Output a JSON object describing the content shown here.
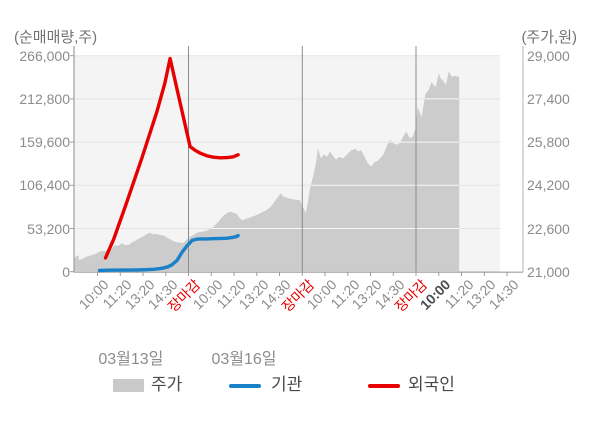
{
  "chart_data": {
    "type": "area+line combo (intraday stock price vs cumulative net buying)",
    "left_axis": {
      "title": "(순매매량,주)",
      "tick_values": [
        0,
        53200,
        106400,
        159600,
        212800,
        266000
      ],
      "range": [
        0,
        266000
      ]
    },
    "right_axis": {
      "title": "(주가,원)",
      "tick_values": [
        21000,
        22600,
        24200,
        25800,
        27400,
        29000
      ],
      "range": [
        21000,
        29000
      ]
    },
    "x_axis": {
      "tick_labels": [
        "10:00",
        "11:20",
        "13:20",
        "14:30",
        "장마감",
        "10:00",
        "11:20",
        "13:20",
        "14:30",
        "장마감",
        "10:00",
        "11:20",
        "13:20",
        "14:30",
        "장마감",
        "10:00",
        "11:20",
        "13:20",
        "14:30"
      ],
      "market_close_indices": [
        4,
        9,
        14
      ],
      "current_time_index": 15,
      "dates": [
        {
          "label": "03월13일",
          "center_u": 1.47
        },
        {
          "label": "03월16일",
          "center_u": 6.44
        }
      ]
    },
    "series": [
      {
        "name": "주가",
        "type": "area",
        "axis": "right",
        "color": "#cccccc",
        "points": [
          [
            -1.03,
            21480
          ],
          [
            -0.95,
            21560
          ],
          [
            -0.85,
            21620
          ],
          [
            -0.8,
            21430
          ],
          [
            -0.6,
            21500
          ],
          [
            -0.49,
            21550
          ],
          [
            -0.3,
            21600
          ],
          [
            -0.13,
            21640
          ],
          [
            0.18,
            21780
          ],
          [
            0.35,
            21760
          ],
          [
            0.49,
            21850
          ],
          [
            0.62,
            21830
          ],
          [
            0.75,
            21980
          ],
          [
            0.9,
            21950
          ],
          [
            1.06,
            22050
          ],
          [
            1.22,
            21990
          ],
          [
            1.37,
            22000
          ],
          [
            1.52,
            22090
          ],
          [
            1.68,
            22150
          ],
          [
            1.83,
            22230
          ],
          [
            1.99,
            22300
          ],
          [
            2.15,
            22380
          ],
          [
            2.3,
            22450
          ],
          [
            2.45,
            22380
          ],
          [
            2.61,
            22400
          ],
          [
            2.75,
            22360
          ],
          [
            2.88,
            22350
          ],
          [
            3.03,
            22280
          ],
          [
            3.19,
            22200
          ],
          [
            3.32,
            22140
          ],
          [
            3.45,
            22100
          ],
          [
            3.6,
            22080
          ],
          [
            3.76,
            22060
          ],
          [
            3.92,
            22180
          ],
          [
            4.07,
            22300
          ],
          [
            4.22,
            22360
          ],
          [
            4.38,
            22450
          ],
          [
            4.54,
            22470
          ],
          [
            4.69,
            22500
          ],
          [
            4.85,
            22540
          ],
          [
            5.0,
            22600
          ],
          [
            5.16,
            22720
          ],
          [
            5.31,
            22850
          ],
          [
            5.45,
            23000
          ],
          [
            5.58,
            23100
          ],
          [
            5.71,
            23180
          ],
          [
            5.84,
            23220
          ],
          [
            5.98,
            23180
          ],
          [
            6.11,
            23150
          ],
          [
            6.24,
            23000
          ],
          [
            6.37,
            22900
          ],
          [
            6.53,
            22960
          ],
          [
            6.68,
            23000
          ],
          [
            6.84,
            23050
          ],
          [
            6.99,
            23100
          ],
          [
            7.15,
            23160
          ],
          [
            7.3,
            23230
          ],
          [
            7.46,
            23300
          ],
          [
            7.61,
            23400
          ],
          [
            7.75,
            23560
          ],
          [
            7.88,
            23700
          ],
          [
            8.05,
            23900
          ],
          [
            8.16,
            23790
          ],
          [
            8.27,
            23750
          ],
          [
            8.43,
            23710
          ],
          [
            8.58,
            23680
          ],
          [
            8.74,
            23660
          ],
          [
            8.89,
            23650
          ],
          [
            9.03,
            23400
          ],
          [
            9.16,
            23170
          ],
          [
            9.25,
            23600
          ],
          [
            9.34,
            24100
          ],
          [
            9.47,
            24500
          ],
          [
            9.6,
            25000
          ],
          [
            9.69,
            25570
          ],
          [
            9.82,
            25200
          ],
          [
            9.96,
            25350
          ],
          [
            10.09,
            25250
          ],
          [
            10.22,
            25450
          ],
          [
            10.35,
            25300
          ],
          [
            10.49,
            25150
          ],
          [
            10.62,
            25250
          ],
          [
            10.8,
            25200
          ],
          [
            10.97,
            25350
          ],
          [
            11.15,
            25500
          ],
          [
            11.33,
            25550
          ],
          [
            11.46,
            25450
          ],
          [
            11.59,
            25500
          ],
          [
            11.77,
            25200
          ],
          [
            11.9,
            25000
          ],
          [
            12.04,
            24900
          ],
          [
            12.17,
            25050
          ],
          [
            12.3,
            25100
          ],
          [
            12.43,
            25200
          ],
          [
            12.57,
            25350
          ],
          [
            12.74,
            25700
          ],
          [
            12.88,
            25880
          ],
          [
            13.01,
            25750
          ],
          [
            13.19,
            25700
          ],
          [
            13.32,
            25800
          ],
          [
            13.45,
            26030
          ],
          [
            13.58,
            26190
          ],
          [
            13.72,
            25950
          ],
          [
            13.85,
            25990
          ],
          [
            13.98,
            26300
          ],
          [
            14.07,
            27100
          ],
          [
            14.16,
            26920
          ],
          [
            14.25,
            26740
          ],
          [
            14.34,
            27200
          ],
          [
            14.42,
            27600
          ],
          [
            14.56,
            27730
          ],
          [
            14.69,
            28040
          ],
          [
            14.78,
            27900
          ],
          [
            14.87,
            27850
          ],
          [
            15.0,
            28350
          ],
          [
            15.09,
            28150
          ],
          [
            15.18,
            28100
          ],
          [
            15.31,
            27920
          ],
          [
            15.44,
            28410
          ],
          [
            15.58,
            28220
          ],
          [
            15.71,
            28250
          ],
          [
            15.84,
            28230
          ],
          [
            15.9,
            28200
          ]
        ]
      },
      {
        "name": "기관",
        "type": "line",
        "axis": "left",
        "color": "#1a80c8",
        "points": [
          [
            0.09,
            1500
          ],
          [
            0.4,
            1800
          ],
          [
            0.84,
            2000
          ],
          [
            1.28,
            2000
          ],
          [
            1.73,
            2200
          ],
          [
            2.08,
            2500
          ],
          [
            2.48,
            3000
          ],
          [
            2.83,
            4200
          ],
          [
            3.1,
            6000
          ],
          [
            3.27,
            8500
          ],
          [
            3.5,
            14000
          ],
          [
            3.72,
            24000
          ],
          [
            3.94,
            32000
          ],
          [
            4.16,
            38500
          ],
          [
            4.38,
            40200
          ],
          [
            4.6,
            40400
          ],
          [
            4.82,
            40400
          ],
          [
            5.04,
            40600
          ],
          [
            5.27,
            40800
          ],
          [
            5.49,
            41000
          ],
          [
            5.71,
            41300
          ],
          [
            5.93,
            42200
          ],
          [
            6.11,
            43200
          ],
          [
            6.18,
            44500
          ]
        ]
      },
      {
        "name": "외국인",
        "type": "line",
        "axis": "left",
        "color": "#e60000",
        "points": [
          [
            0.35,
            17000
          ],
          [
            0.71,
            40000
          ],
          [
            1.28,
            85000
          ],
          [
            1.95,
            140000
          ],
          [
            2.61,
            197000
          ],
          [
            2.96,
            232000
          ],
          [
            3.19,
            262500
          ],
          [
            3.63,
            208000
          ],
          [
            4.07,
            154000
          ],
          [
            4.29,
            149500
          ],
          [
            4.51,
            146000
          ],
          [
            4.78,
            143000
          ],
          [
            5.09,
            141000
          ],
          [
            5.4,
            140300
          ],
          [
            5.71,
            140500
          ],
          [
            5.97,
            141500
          ],
          [
            6.18,
            144000
          ]
        ]
      }
    ],
    "legend": {
      "items": [
        {
          "label": "주가",
          "swatch": "area"
        },
        {
          "label": "기관",
          "swatch": "line"
        },
        {
          "label": "외국인",
          "swatch": "line"
        }
      ]
    },
    "colors": {
      "plot_bg": "#f4f4f4",
      "gridline": "#e3e3e3",
      "gridline_over_area": "#ffffff",
      "day_separator": "#8c8c8c",
      "axis_line": "#9e9e9e",
      "tick_text": "#8c8c8c",
      "close_tick_text": "#e60000",
      "current_tick_text": "#4d4d4d",
      "legend_text": "#4a4a4a",
      "title_text": "#737373",
      "price_fill": "#cccccc",
      "institution_line": "#1a80c8",
      "foreigner_line": "#e60000"
    }
  }
}
